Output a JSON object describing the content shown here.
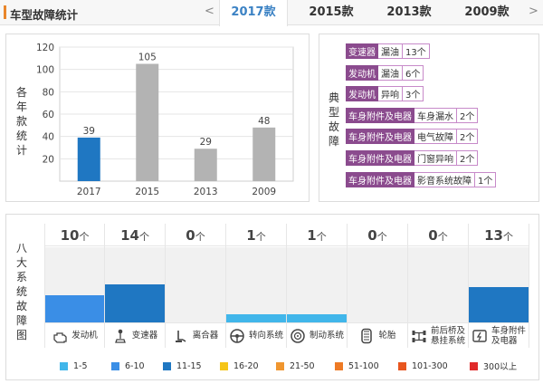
{
  "header": {
    "title": "车型故障统计",
    "tabs": [
      {
        "label": "2017款",
        "active": true
      },
      {
        "label": "2015款",
        "active": false
      },
      {
        "label": "2013款",
        "active": false
      },
      {
        "label": "2009款",
        "active": false
      }
    ],
    "prev_arrow": "<",
    "next_arrow": ">",
    "accent_color": "#e9862b"
  },
  "yearly_panel": {
    "label": "各年款统计"
  },
  "chart_data": {
    "type": "bar",
    "categories": [
      "2017",
      "2015",
      "2013",
      "2009"
    ],
    "values": [
      39,
      105,
      29,
      48
    ],
    "highlight_index": 0,
    "highlight_color": "#1f77c2",
    "bar_color": "#b3b3b3",
    "ylim": [
      0,
      120
    ],
    "yticks": [
      20,
      40,
      60,
      80,
      100,
      120
    ],
    "grid": true
  },
  "typical_panel": {
    "label": "典型故障",
    "faults": [
      {
        "system": "变速器",
        "fault": "漏油",
        "count": "13个"
      },
      {
        "system": "发动机",
        "fault": "漏油",
        "count": "6个"
      },
      {
        "system": "发动机",
        "fault": "异响",
        "count": "3个"
      },
      {
        "system": "车身附件及电器",
        "fault": "车身漏水",
        "count": "2个"
      },
      {
        "system": "车身附件及电器",
        "fault": "电气故障",
        "count": "2个"
      },
      {
        "system": "车身附件及电器",
        "fault": "门窗异响",
        "count": "2个"
      },
      {
        "system": "车身附件及电器",
        "fault": "影音系统故障",
        "count": "1个"
      }
    ]
  },
  "systems_panel": {
    "label": "八大系统故障图",
    "unit": "个",
    "systems": [
      {
        "name": "发动机",
        "count": 10,
        "color": "#3a8ee6",
        "icon": "engine-icon"
      },
      {
        "name": "变速器",
        "count": 14,
        "color": "#1f77c2",
        "icon": "gearshift-icon"
      },
      {
        "name": "离合器",
        "count": 0,
        "color": "#f1f1f1",
        "icon": "clutch-pedal-icon"
      },
      {
        "name": "转向系统",
        "count": 1,
        "color": "#41b6ea",
        "icon": "steering-wheel-icon"
      },
      {
        "name": "制动系统",
        "count": 1,
        "color": "#41b6ea",
        "icon": "brake-disc-icon"
      },
      {
        "name": "轮胎",
        "count": 0,
        "color": "#f1f1f1",
        "icon": "tire-icon"
      },
      {
        "name": "前后桥及\n悬挂系统",
        "count": 0,
        "color": "#f1f1f1",
        "icon": "axle-icon"
      },
      {
        "name": "车身附件\n及电器",
        "count": 13,
        "color": "#1f77c2",
        "icon": "electrical-icon"
      }
    ]
  },
  "legend": [
    {
      "label": "1-5",
      "color": "#41b6ea"
    },
    {
      "label": "6-10",
      "color": "#3a8ee6"
    },
    {
      "label": "11-15",
      "color": "#1f77c2"
    },
    {
      "label": "16-20",
      "color": "#f5c518"
    },
    {
      "label": "21-50",
      "color": "#f0962f"
    },
    {
      "label": "51-100",
      "color": "#ee7a25"
    },
    {
      "label": "101-300",
      "color": "#e8561f"
    },
    {
      "label": "300以上",
      "color": "#e02a2a"
    }
  ]
}
